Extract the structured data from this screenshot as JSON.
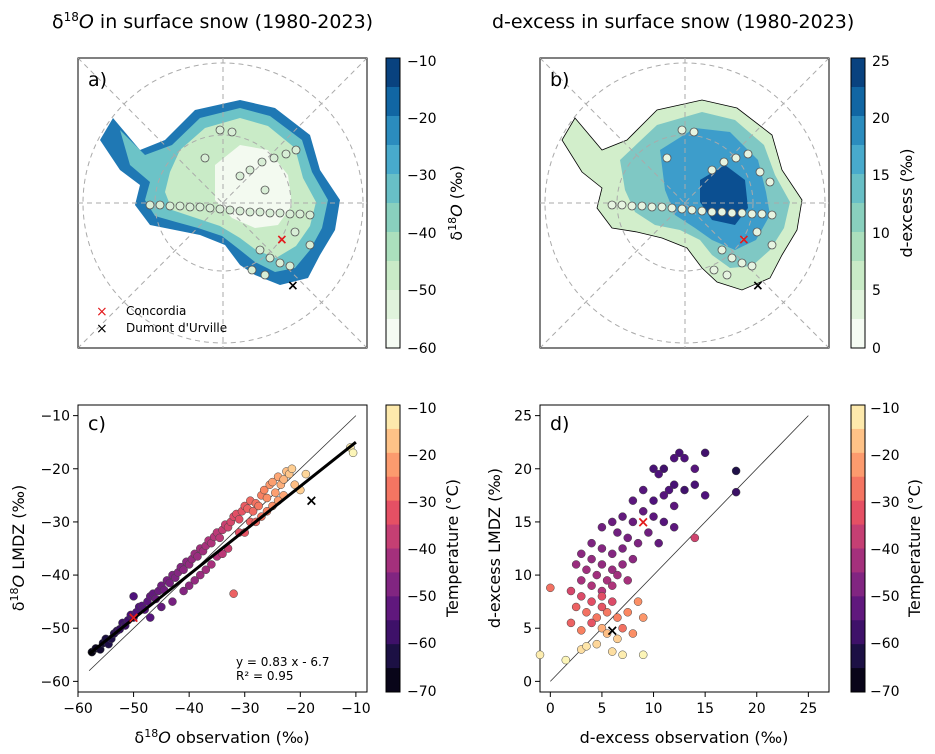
{
  "figure": {
    "panel_a": {
      "title": "δ18O in surface snow (1980-2023)",
      "title_main": "δ",
      "title_sup": "18",
      "title_rest": "O in surface snow (1980-2023)",
      "label": "a)",
      "colorbar_label": "δ18O (‰)",
      "colorbar_ticks": [
        "−10",
        "−20",
        "−30",
        "−40",
        "−50",
        "−60"
      ],
      "colormap": [
        "#ffffff",
        "#e6f5e1",
        "#c9ebc7",
        "#a3dcba",
        "#78c8c0",
        "#4fb1cf",
        "#2b8cbe",
        "#0b5d9c",
        "#08306b"
      ],
      "legend": [
        {
          "label": "Concordia",
          "marker": "x",
          "color": "#e31a1c"
        },
        {
          "label": "Dumont d'Urville",
          "marker": "x",
          "color": "#000000"
        }
      ]
    },
    "panel_b": {
      "title": "d-excess in surface snow (1980-2023)",
      "label": "b)",
      "colorbar_label": "d-excess (‰)",
      "colorbar_ticks": [
        "25",
        "20",
        "15",
        "10",
        "5",
        "0"
      ]
    },
    "panel_c": {
      "label": "c)",
      "colorbar_label": "Temperature (°C)",
      "colorbar_ticks": [
        "−10",
        "−20",
        "−30",
        "−40",
        "−50",
        "−60",
        "−70"
      ],
      "annotation_line1": "y = 0.83 x - 6.7",
      "annotation_line2": "R² = 0.95"
    },
    "panel_d": {
      "label": "d)",
      "colorbar_label": "Temperature (°C)",
      "colorbar_ticks": [
        "−10",
        "−20",
        "−30",
        "−40",
        "−50",
        "−60",
        "−70"
      ]
    },
    "temperature_colormap": [
      "#000004",
      "#1c1044",
      "#4f127b",
      "#812581",
      "#b5367a",
      "#e55064",
      "#fb8761",
      "#fec287",
      "#fcfdbf"
    ]
  },
  "chart_data": [
    {
      "type": "scatter",
      "panel": "c",
      "title": "",
      "xlabel": "δ18O observation (‰)",
      "ylabel": "δ18O LMDZ (‰)",
      "xlim": [
        -60,
        -8
      ],
      "ylim": [
        -62,
        -8
      ],
      "xticks": [
        -60,
        -50,
        -40,
        -30,
        -20,
        -10
      ],
      "xtick_labels": [
        "−60",
        "−50",
        "−40",
        "−30",
        "−20",
        "−10"
      ],
      "yticks": [
        -60,
        -50,
        -40,
        -30,
        -20,
        -10
      ],
      "ytick_labels": [
        "−60",
        "−50",
        "−40",
        "−30",
        "−20",
        "−10"
      ],
      "color_variable": "Temperature (°C)",
      "color_range": [
        -70,
        -10
      ],
      "identity_line": {
        "x": [
          -58,
          -10
        ],
        "y": [
          -58,
          -10
        ]
      },
      "fit_line": {
        "slope": 0.83,
        "intercept": -6.7,
        "x": [
          -58,
          -10
        ]
      },
      "points": [
        [
          -57.5,
          -54.5,
          -68
        ],
        [
          -56.8,
          -53.8,
          -66
        ],
        [
          -56.0,
          -54.0,
          -65
        ],
        [
          -55.5,
          -52.8,
          -64
        ],
        [
          -55.0,
          -52.0,
          -63
        ],
        [
          -54.5,
          -53.0,
          -62
        ],
        [
          -54.0,
          -52.0,
          -62
        ],
        [
          -53.5,
          -51.0,
          -61
        ],
        [
          -53.0,
          -50.5,
          -60
        ],
        [
          -52.5,
          -50.2,
          -59
        ],
        [
          -52.0,
          -49.0,
          -58
        ],
        [
          -51.5,
          -49.5,
          -58
        ],
        [
          -51.0,
          -48.5,
          -57
        ],
        [
          -50.5,
          -47.5,
          -56
        ],
        [
          -50.0,
          -48.0,
          -56
        ],
        [
          -49.5,
          -47.0,
          -55
        ],
        [
          -49.0,
          -46.0,
          -55
        ],
        [
          -48.5,
          -45.8,
          -54
        ],
        [
          -48.0,
          -46.5,
          -54
        ],
        [
          -47.5,
          -45.0,
          -53
        ],
        [
          -47.0,
          -44.0,
          -52
        ],
        [
          -46.5,
          -43.5,
          -52
        ],
        [
          -46.0,
          -44.5,
          -51
        ],
        [
          -45.5,
          -43.0,
          -51
        ],
        [
          -45.0,
          -42.0,
          -50
        ],
        [
          -44.5,
          -42.8,
          -50
        ],
        [
          -44.0,
          -41.0,
          -49
        ],
        [
          -43.5,
          -41.5,
          -49
        ],
        [
          -43.0,
          -40.0,
          -48
        ],
        [
          -42.5,
          -40.5,
          -48
        ],
        [
          -42.0,
          -39.5,
          -47
        ],
        [
          -41.5,
          -38.5,
          -47
        ],
        [
          -41.0,
          -39.0,
          -46
        ],
        [
          -40.5,
          -37.5,
          -46
        ],
        [
          -40.0,
          -38.0,
          -45
        ],
        [
          -39.5,
          -37.0,
          -45
        ],
        [
          -39.0,
          -36.0,
          -44
        ],
        [
          -38.5,
          -36.5,
          -44
        ],
        [
          -38.0,
          -35.0,
          -43
        ],
        [
          -37.5,
          -35.5,
          -43
        ],
        [
          -37.0,
          -34.5,
          -42
        ],
        [
          -36.5,
          -33.5,
          -41
        ],
        [
          -36.0,
          -34.0,
          -41
        ],
        [
          -35.5,
          -32.8,
          -40
        ],
        [
          -35.0,
          -32.0,
          -39
        ],
        [
          -34.5,
          -33.0,
          -39
        ],
        [
          -34.0,
          -31.5,
          -38
        ],
        [
          -33.5,
          -30.5,
          -37
        ],
        [
          -33.0,
          -31.0,
          -36
        ],
        [
          -32.5,
          -30.0,
          -35
        ],
        [
          -32.0,
          -29.0,
          -34
        ],
        [
          -31.5,
          -28.5,
          -33
        ],
        [
          -31.0,
          -29.5,
          -33
        ],
        [
          -30.5,
          -28.0,
          -32
        ],
        [
          -30.0,
          -27.0,
          -31
        ],
        [
          -29.5,
          -27.5,
          -30
        ],
        [
          -29.0,
          -26.0,
          -29
        ],
        [
          -28.5,
          -28.0,
          -29
        ],
        [
          -28.0,
          -26.5,
          -28
        ],
        [
          -27.5,
          -27.0,
          -27
        ],
        [
          -27.0,
          -25.0,
          -26
        ],
        [
          -26.5,
          -24.0,
          -25
        ],
        [
          -26.0,
          -25.5,
          -24
        ],
        [
          -25.5,
          -23.0,
          -23
        ],
        [
          -25.0,
          -22.5,
          -22
        ],
        [
          -24.5,
          -24.5,
          -22
        ],
        [
          -24.0,
          -21.5,
          -21
        ],
        [
          -23.5,
          -23.0,
          -20
        ],
        [
          -23.0,
          -22.0,
          -19
        ],
        [
          -22.5,
          -20.5,
          -18
        ],
        [
          -22.0,
          -21.0,
          -17
        ],
        [
          -21.5,
          -20.0,
          -16
        ],
        [
          -11.0,
          -16.0,
          -12
        ],
        [
          -10.5,
          -17.0,
          -11
        ],
        [
          -32.0,
          -43.5,
          -30
        ],
        [
          -50.0,
          -44.0,
          -55
        ],
        [
          -45.0,
          -46.0,
          -52
        ],
        [
          -47.0,
          -48.0,
          -54
        ],
        [
          -40.0,
          -42.0,
          -46
        ],
        [
          -38.0,
          -40.0,
          -44
        ],
        [
          -36.0,
          -38.0,
          -42
        ],
        [
          -35.0,
          -36.5,
          -40
        ],
        [
          -33.0,
          -35.0,
          -37
        ],
        [
          -31.0,
          -32.0,
          -33
        ],
        [
          -29.0,
          -30.0,
          -30
        ],
        [
          -27.0,
          -29.0,
          -27
        ],
        [
          -25.0,
          -27.0,
          -24
        ],
        [
          -23.0,
          -25.0,
          -21
        ],
        [
          -21.0,
          -23.0,
          -18
        ],
        [
          -20.0,
          -24.0,
          -16
        ],
        [
          -19.0,
          -21.0,
          -15
        ],
        [
          -43.0,
          -45.0,
          -49
        ],
        [
          -41.0,
          -43.0,
          -47
        ],
        [
          -39.0,
          -41.0,
          -45
        ],
        [
          -37.0,
          -39.0,
          -43
        ],
        [
          -34.0,
          -36.0,
          -39
        ],
        [
          -30.0,
          -32.0,
          -32
        ],
        [
          -28.0,
          -30.0,
          -29
        ],
        [
          -26.0,
          -28.0,
          -26
        ],
        [
          -24.0,
          -26.0,
          -22
        ]
      ],
      "markers": [
        {
          "label": "Concordia",
          "x": -50,
          "y": -48,
          "color": "#e31a1c"
        },
        {
          "label": "Dumont d'Urville",
          "x": -18,
          "y": -26,
          "color": "#000000"
        }
      ]
    },
    {
      "type": "scatter",
      "panel": "d",
      "title": "",
      "xlabel": "d-excess observation (‰)",
      "ylabel": "d-excess LMDZ (‰)",
      "xlim": [
        -1,
        27
      ],
      "ylim": [
        -1,
        26
      ],
      "xticks": [
        0,
        5,
        10,
        15,
        20,
        25
      ],
      "xtick_labels": [
        "0",
        "5",
        "10",
        "15",
        "20",
        "25"
      ],
      "yticks": [
        0,
        5,
        10,
        15,
        20,
        25
      ],
      "ytick_labels": [
        "0",
        "5",
        "10",
        "15",
        "20",
        "25"
      ],
      "color_variable": "Temperature (°C)",
      "color_range": [
        -70,
        -10
      ],
      "identity_line": {
        "x": [
          0,
          25
        ],
        "y": [
          0,
          25
        ]
      },
      "points": [
        [
          12.0,
          21.0,
          -55
        ],
        [
          12.5,
          21.5,
          -56
        ],
        [
          13.0,
          21.0,
          -55
        ],
        [
          14.0,
          20.0,
          -54
        ],
        [
          15.0,
          21.5,
          -57
        ],
        [
          18.0,
          19.8,
          -62
        ],
        [
          18.0,
          17.8,
          -58
        ],
        [
          10.0,
          20.0,
          -56
        ],
        [
          10.5,
          19.5,
          -55
        ],
        [
          11.0,
          20.0,
          -57
        ],
        [
          11.5,
          18.0,
          -55
        ],
        [
          12.0,
          18.5,
          -56
        ],
        [
          13.0,
          18.0,
          -57
        ],
        [
          14.0,
          18.5,
          -56
        ],
        [
          15.0,
          17.5,
          -55
        ],
        [
          9.0,
          18.0,
          -54
        ],
        [
          10.0,
          17.0,
          -55
        ],
        [
          11.0,
          17.5,
          -54
        ],
        [
          12.0,
          16.5,
          -53
        ],
        [
          8.0,
          17.0,
          -53
        ],
        [
          9.0,
          16.0,
          -52
        ],
        [
          10.0,
          15.5,
          -53
        ],
        [
          11.0,
          15.0,
          -54
        ],
        [
          8.0,
          15.0,
          -51
        ],
        [
          7.0,
          15.5,
          -52
        ],
        [
          6.0,
          15.0,
          -51
        ],
        [
          5.0,
          14.5,
          -50
        ],
        [
          6.5,
          14.0,
          -50
        ],
        [
          7.5,
          13.5,
          -49
        ],
        [
          8.5,
          13.0,
          -48
        ],
        [
          9.5,
          14.0,
          -50
        ],
        [
          10.5,
          13.0,
          -52
        ],
        [
          12.0,
          14.5,
          -53
        ],
        [
          14.0,
          13.5,
          -36
        ],
        [
          4.0,
          13.0,
          -48
        ],
        [
          5.0,
          12.5,
          -47
        ],
        [
          6.0,
          12.0,
          -47
        ],
        [
          7.0,
          12.5,
          -48
        ],
        [
          8.0,
          11.5,
          -46
        ],
        [
          3.0,
          12.0,
          -46
        ],
        [
          4.0,
          11.5,
          -45
        ],
        [
          5.0,
          11.0,
          -45
        ],
        [
          6.0,
          10.5,
          -44
        ],
        [
          7.0,
          11.0,
          -45
        ],
        [
          2.5,
          11.0,
          -44
        ],
        [
          3.5,
          10.5,
          -43
        ],
        [
          4.5,
          10.0,
          -43
        ],
        [
          5.5,
          9.5,
          -42
        ],
        [
          6.5,
          10.0,
          -43
        ],
        [
          7.5,
          9.5,
          -42
        ],
        [
          3.0,
          9.5,
          -42
        ],
        [
          4.0,
          9.0,
          -41
        ],
        [
          5.0,
          8.5,
          -40
        ],
        [
          6.0,
          9.0,
          -41
        ],
        [
          2.0,
          8.5,
          -35
        ],
        [
          3.0,
          8.0,
          -34
        ],
        [
          4.0,
          7.5,
          -33
        ],
        [
          5.0,
          8.0,
          -33
        ],
        [
          0.0,
          8.8,
          -28
        ],
        [
          2.5,
          7.0,
          -30
        ],
        [
          3.5,
          6.5,
          -28
        ],
        [
          4.5,
          6.0,
          -27
        ],
        [
          5.5,
          6.5,
          -27
        ],
        [
          6.5,
          6.0,
          -26
        ],
        [
          7.5,
          6.5,
          -25
        ],
        [
          8.5,
          7.5,
          -24
        ],
        [
          9.0,
          6.0,
          -23
        ],
        [
          5.0,
          5.0,
          -20
        ],
        [
          5.5,
          4.5,
          -18
        ],
        [
          6.5,
          4.0,
          -16
        ],
        [
          4.5,
          3.5,
          -15
        ],
        [
          3.0,
          3.0,
          -14
        ],
        [
          3.5,
          3.3,
          -13
        ],
        [
          6.0,
          2.8,
          -14
        ],
        [
          7.0,
          2.5,
          -12
        ],
        [
          9.0,
          2.5,
          -11
        ],
        [
          1.5,
          2.0,
          -11
        ],
        [
          -1.0,
          2.5,
          -12
        ],
        [
          2.0,
          5.5,
          -30
        ],
        [
          3.0,
          4.8,
          -26
        ],
        [
          4.0,
          5.5,
          -32
        ],
        [
          7.0,
          5.0,
          -28
        ],
        [
          8.0,
          4.5,
          -24
        ],
        [
          5.0,
          7.0,
          -32
        ],
        [
          6.0,
          7.5,
          -34
        ]
      ],
      "markers": [
        {
          "label": "Concordia",
          "x": 9,
          "y": 15,
          "color": "#e31a1c"
        },
        {
          "label": "Dumont d'Urville",
          "x": 6,
          "y": 4.8,
          "color": "#000000"
        }
      ]
    }
  ]
}
